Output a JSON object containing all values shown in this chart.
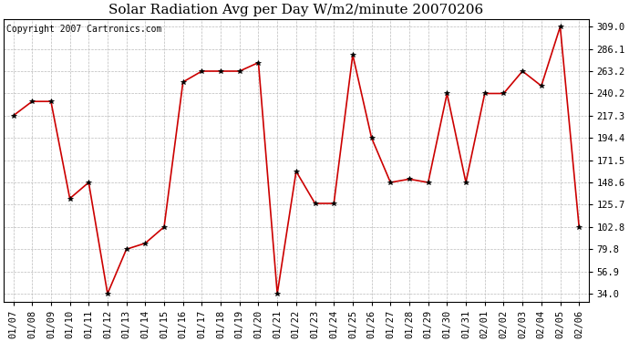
{
  "title": "Solar Radiation Avg per Day W/m2/minute 20070206",
  "copyright": "Copyright 2007 Cartronics.com",
  "dates": [
    "01/07",
    "01/08",
    "01/09",
    "01/10",
    "01/11",
    "01/12",
    "01/13",
    "01/14",
    "01/15",
    "01/16",
    "01/17",
    "01/18",
    "01/19",
    "01/20",
    "01/21",
    "01/22",
    "01/23",
    "01/24",
    "01/25",
    "01/26",
    "01/27",
    "01/28",
    "01/29",
    "01/30",
    "01/31",
    "02/01",
    "02/02",
    "02/03",
    "02/04",
    "02/05",
    "02/06"
  ],
  "values": [
    217.3,
    232.0,
    232.0,
    132.0,
    148.6,
    34.0,
    79.8,
    86.0,
    102.8,
    252.0,
    263.2,
    263.2,
    263.2,
    272.0,
    34.0,
    160.0,
    127.0,
    127.0,
    280.0,
    194.4,
    148.6,
    152.0,
    148.6,
    240.2,
    148.6,
    240.2,
    240.2,
    263.2,
    248.0,
    309.0,
    102.8
  ],
  "ylim_min": 34.0,
  "ylim_max": 309.0,
  "yticks": [
    34.0,
    56.9,
    79.8,
    102.8,
    125.7,
    148.6,
    171.5,
    194.4,
    217.3,
    240.2,
    263.2,
    286.1,
    309.0
  ],
  "line_color": "#cc0000",
  "marker_color": "#000000",
  "bg_color": "#ffffff",
  "grid_color": "#bbbbbb",
  "title_fontsize": 11,
  "copyright_fontsize": 7,
  "tick_fontsize": 7.5,
  "fig_width": 6.9,
  "fig_height": 3.75,
  "dpi": 100
}
